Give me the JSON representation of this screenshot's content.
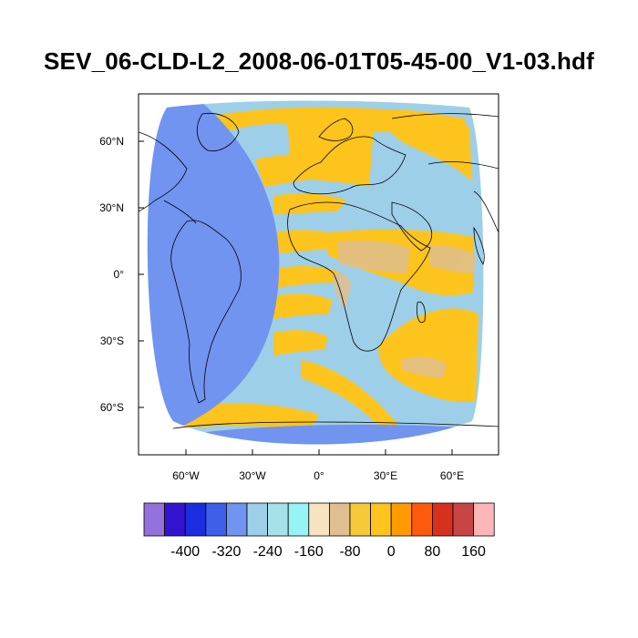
{
  "title": "SEV_06-CLD-L2_2008-06-01T05-45-00_V1-03.hdf",
  "map": {
    "projection": "satellite-disk",
    "lat_ticks": [
      "60°N",
      "30°N",
      "0°",
      "30°S",
      "60°S"
    ],
    "lon_ticks": [
      "60°W",
      "30°W",
      "0°",
      "30°E",
      "60°E"
    ],
    "colors": {
      "disk_background": "#9ecfe8",
      "western_region": "#7094ef",
      "southern_cap": "#7094ef",
      "cloud_band": "#fcc41c",
      "tan_patch": "#dfbf8f",
      "coastline": "#000000"
    }
  },
  "colorbar": {
    "colors": [
      "#9370db",
      "#3413d0",
      "#1a2ee0",
      "#3d5fe9",
      "#7094ef",
      "#9ecfe8",
      "#a5e1e9",
      "#96f4f4",
      "#f6e4c1",
      "#dfbf8f",
      "#f7c93a",
      "#fcc41c",
      "#ff9a00",
      "#ff5a0c",
      "#d8301e",
      "#c74545",
      "#ffb6b6"
    ],
    "labels": [
      "-400",
      "-320",
      "-240",
      "-160",
      "-80",
      "0",
      "80",
      "160"
    ]
  }
}
